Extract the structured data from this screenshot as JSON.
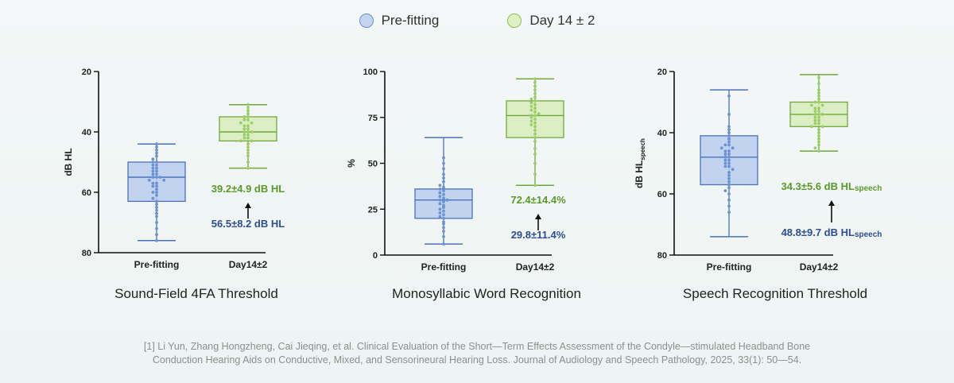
{
  "legend": [
    {
      "label": "Pre-fitting",
      "fill": "#c5d5ee",
      "stroke": "#6a8fcc"
    },
    {
      "label": "Day 14 ± 2",
      "fill": "#dff0c2",
      "stroke": "#8dbd55"
    }
  ],
  "colors": {
    "pre_fill": "#b9cdec",
    "pre_stroke": "#4a72b8",
    "pre_dot": "#6b92d2",
    "day_fill": "#d8edbb",
    "day_stroke": "#6fa83a",
    "day_dot": "#9ccd68",
    "pre_text": "#2d4f8f",
    "day_text": "#5a9a2a"
  },
  "chart_data": [
    {
      "type": "box",
      "title": "Sound-Field 4FA Threshold",
      "ylabel": "dB HL",
      "ylabel_sub": "",
      "ylim": [
        20,
        80
      ],
      "y_reversed": true,
      "yticks": [
        20,
        40,
        60,
        80
      ],
      "categories": [
        "Pre-fitting",
        "Day14±2"
      ],
      "series": [
        {
          "name": "Pre-fitting",
          "min": 44,
          "q1": 50,
          "median": 55,
          "q3": 63,
          "max": 76,
          "points": [
            44,
            45,
            46,
            47,
            48,
            49,
            50,
            50,
            51,
            51,
            52,
            52,
            53,
            53,
            54,
            54,
            55,
            55,
            55,
            56,
            56,
            57,
            57,
            58,
            58,
            59,
            60,
            60,
            61,
            62,
            63,
            64,
            65,
            66,
            67,
            68,
            70,
            72,
            74,
            76
          ]
        },
        {
          "name": "Day14±2",
          "min": 31,
          "q1": 35,
          "median": 40,
          "q3": 43,
          "max": 52,
          "points": [
            31,
            32,
            33,
            34,
            35,
            35,
            36,
            36,
            37,
            37,
            38,
            38,
            39,
            39,
            40,
            40,
            40,
            41,
            41,
            42,
            42,
            43,
            43,
            44,
            45,
            46,
            47,
            48,
            50,
            52
          ]
        }
      ],
      "annotations": [
        {
          "text": "39.2±4.9 dB HL",
          "sub": "",
          "series": 1
        },
        {
          "text": "56.5±8.2 dB HL",
          "sub": "",
          "series": 0
        }
      ]
    },
    {
      "type": "box",
      "title": "Monosyllabic Word Recognition",
      "ylabel": "%",
      "ylabel_sub": "",
      "ylim": [
        0,
        100
      ],
      "y_reversed": false,
      "yticks": [
        0,
        25,
        50,
        75,
        100
      ],
      "categories": [
        "Pre-fitting",
        "Day14±2"
      ],
      "series": [
        {
          "name": "Pre-fitting",
          "min": 6,
          "q1": 20,
          "median": 30,
          "q3": 36,
          "max": 64,
          "points": [
            6,
            10,
            13,
            15,
            17,
            18,
            20,
            21,
            22,
            23,
            24,
            25,
            26,
            27,
            28,
            29,
            30,
            30,
            31,
            32,
            33,
            34,
            35,
            36,
            37,
            38,
            40,
            42,
            44,
            47,
            50,
            53
          ]
        },
        {
          "name": "Day14±2",
          "min": 38,
          "q1": 64,
          "median": 76,
          "q3": 84,
          "max": 96,
          "points": [
            38,
            44,
            50,
            55,
            58,
            62,
            64,
            66,
            68,
            70,
            71,
            72,
            73,
            74,
            75,
            76,
            76,
            77,
            78,
            79,
            80,
            81,
            82,
            83,
            84,
            85,
            86,
            88,
            90,
            92,
            94,
            96
          ]
        }
      ],
      "annotations": [
        {
          "text": "72.4±14.4%",
          "sub": "",
          "series": 1
        },
        {
          "text": "29.8±11.4%",
          "sub": "",
          "series": 0
        }
      ]
    },
    {
      "type": "box",
      "title": "Speech Recognition Threshold",
      "ylabel": "dB HL",
      "ylabel_sub": "speech",
      "ylim": [
        20,
        80
      ],
      "y_reversed": true,
      "yticks": [
        20,
        40,
        60,
        80
      ],
      "categories": [
        "Pre-fitting",
        "Day14±2"
      ],
      "series": [
        {
          "name": "Pre-fitting",
          "min": 26,
          "q1": 41,
          "median": 48,
          "q3": 57,
          "max": 74,
          "points": [
            28,
            34,
            38,
            39,
            40,
            41,
            42,
            43,
            44,
            44,
            45,
            45,
            46,
            46,
            47,
            47,
            48,
            48,
            49,
            49,
            50,
            50,
            51,
            51,
            52,
            53,
            54,
            55,
            56,
            57,
            58,
            59,
            60,
            62,
            64,
            66
          ]
        },
        {
          "name": "Day14±2",
          "min": 21,
          "q1": 30,
          "median": 34,
          "q3": 38,
          "max": 46,
          "points": [
            22,
            24,
            26,
            27,
            28,
            29,
            30,
            30,
            31,
            31,
            32,
            32,
            33,
            33,
            34,
            34,
            34,
            35,
            35,
            36,
            36,
            37,
            37,
            38,
            38,
            39,
            40,
            41,
            42,
            43,
            44,
            45,
            46
          ]
        }
      ],
      "annotations": [
        {
          "text": "34.3±5.6 dB HL",
          "sub": "speech",
          "series": 1
        },
        {
          "text": "48.8±9.7 dB HL",
          "sub": "speech",
          "series": 0
        }
      ]
    }
  ],
  "reference": {
    "line1": "[1] Li Yun, Zhang Hongzheng, Cai Jieqing, et al. Clinical Evaluation of the Short—Term Effects Assessment of the Condyle—stimulated Headband Bone",
    "line2": "Conduction Hearing Aids on Conductive, Mixed, and Sensorineural Hearing Loss. Journal of Audiology and Speech Pathology, 2025, 33(1): 50—54."
  }
}
